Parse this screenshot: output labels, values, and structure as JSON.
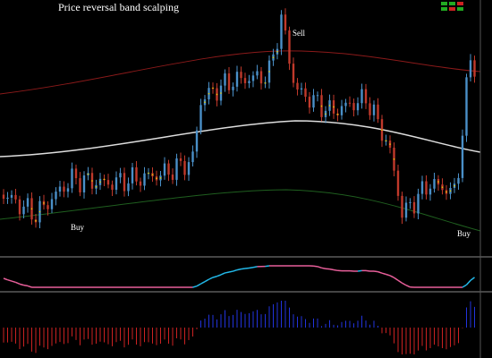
{
  "header": {
    "title": "Price reversal band scalping"
  },
  "annotations": [
    {
      "label": "Sell"
    },
    {
      "label": "Buy"
    },
    {
      "label": "Buy"
    }
  ]
}
